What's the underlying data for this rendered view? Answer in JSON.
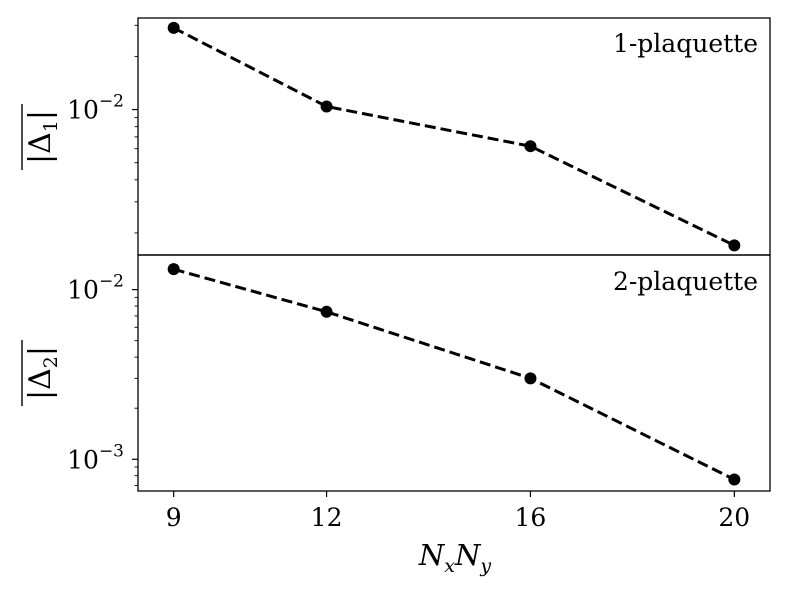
{
  "chart_data": [
    {
      "type": "line",
      "panel": "top",
      "annotation": "1-plaquette",
      "ylabel": "|Δ1|",
      "yscale": "log",
      "ylim": [
        0.0015,
        0.033
      ],
      "yticks": [
        {
          "value": 0.01,
          "base": "10",
          "exp": "−2"
        }
      ],
      "x": [
        9,
        12,
        16,
        20
      ],
      "series": [
        {
          "values": [
            0.029,
            0.0104,
            0.0062,
            0.0017
          ]
        }
      ],
      "style": {
        "color": "#000000",
        "linestyle": "dashed",
        "marker": "circle"
      }
    },
    {
      "type": "line",
      "panel": "bottom",
      "annotation": "2-plaquette",
      "ylabel": "|Δ2|",
      "yscale": "log",
      "ylim": [
        0.00065,
        0.016
      ],
      "yticks": [
        {
          "value": 0.01,
          "base": "10",
          "exp": "−2"
        },
        {
          "value": 0.001,
          "base": "10",
          "exp": "−3"
        }
      ],
      "x": [
        9,
        12,
        16,
        20
      ],
      "series": [
        {
          "values": [
            0.0132,
            0.0074,
            0.003,
            0.00076
          ]
        }
      ],
      "style": {
        "color": "#000000",
        "linestyle": "dashed",
        "marker": "circle"
      }
    }
  ],
  "shared_x": {
    "xlabel_base1": "N",
    "xlabel_sub1": "x",
    "xlabel_base2": "N",
    "xlabel_sub2": "y",
    "xlim": [
      8.3,
      20.7
    ],
    "ticks": [
      9,
      12,
      16,
      20
    ],
    "tick_labels": [
      "9",
      "12",
      "16",
      "20"
    ]
  },
  "ylabels": {
    "top": {
      "base": "|Δ",
      "sub": "1",
      "end": "|"
    },
    "bottom": {
      "base": "|Δ",
      "sub": "2",
      "end": "|"
    }
  }
}
